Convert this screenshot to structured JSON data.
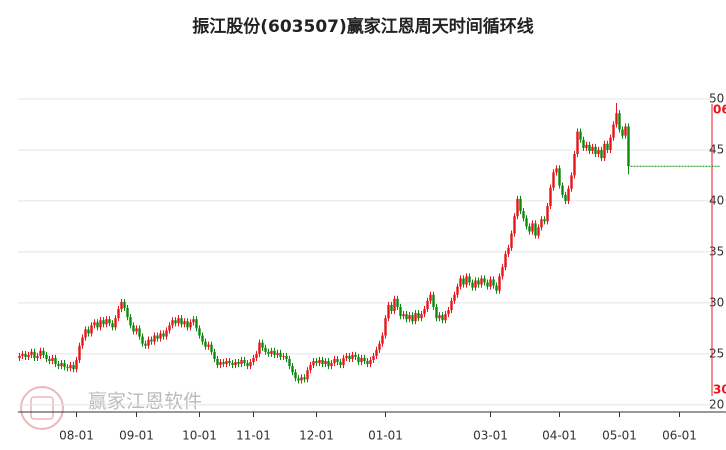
{
  "chart_data": {
    "type": "candlestick",
    "title": "振江股份(603507)赢家江恩周天时间循环线",
    "watermark": "赢家江恩软件",
    "annotations": [
      "06",
      "30"
    ],
    "up_color": "#e8141a",
    "down_color": "#0a8a0a",
    "cycle_color": "#e8141a",
    "ylim": [
      19.3,
      52.3
    ],
    "yticks": [
      20,
      25,
      30,
      35,
      40,
      45,
      50
    ],
    "grid": true,
    "categories": [
      null,
      null,
      null,
      null,
      null,
      null,
      null,
      null,
      null,
      null,
      null,
      null,
      null,
      null,
      null,
      null,
      null,
      null,
      null,
      "08-01",
      null,
      null,
      null,
      null,
      null,
      null,
      null,
      null,
      null,
      null,
      null,
      null,
      null,
      null,
      null,
      null,
      null,
      null,
      null,
      "09-01",
      null,
      null,
      null,
      null,
      null,
      null,
      null,
      null,
      null,
      null,
      null,
      null,
      null,
      null,
      null,
      null,
      null,
      null,
      null,
      null,
      "10-01",
      null,
      null,
      null,
      null,
      null,
      null,
      null,
      null,
      null,
      null,
      null,
      null,
      null,
      null,
      null,
      null,
      null,
      "11-01",
      null,
      null,
      null,
      null,
      null,
      null,
      null,
      null,
      null,
      null,
      null,
      null,
      null,
      null,
      null,
      null,
      null,
      null,
      null,
      null,
      "12-01",
      null,
      null,
      null,
      null,
      null,
      null,
      null,
      null,
      null,
      null,
      null,
      null,
      null,
      null,
      null,
      null,
      null,
      null,
      null,
      null,
      null,
      null,
      "01-01",
      null,
      null,
      null,
      null,
      null,
      null,
      null,
      null,
      null,
      null,
      null,
      null,
      null,
      null,
      null,
      null,
      null,
      null,
      null,
      null,
      null,
      null,
      null,
      null,
      null,
      null,
      null,
      null,
      null,
      null,
      null,
      null,
      null,
      null,
      "03-01",
      null,
      null,
      null,
      null,
      null,
      null,
      null,
      null,
      null,
      null,
      null,
      null,
      null,
      null,
      null,
      null,
      null,
      null,
      null,
      null,
      null,
      null,
      "04-01",
      null,
      null,
      null,
      null,
      null,
      null,
      null,
      null,
      null,
      null,
      null,
      null,
      null,
      null,
      null,
      null,
      null,
      null,
      null,
      "05-01",
      null,
      null,
      null,
      null,
      null,
      null,
      null,
      null,
      null,
      null,
      null,
      null,
      null,
      null,
      null,
      null,
      null,
      null,
      null,
      "06-01"
    ],
    "open": [
      24.6,
      24.8,
      25.0,
      24.7,
      24.9,
      25.2,
      24.6,
      24.8,
      25.3,
      24.9,
      24.5,
      24.3,
      24.6,
      24.0,
      23.8,
      24.1,
      23.7,
      23.6,
      23.9,
      23.5,
      24.4,
      25.8,
      26.6,
      27.4,
      27.0,
      27.8,
      28.1,
      27.6,
      28.3,
      27.9,
      28.4,
      28.0,
      27.6,
      28.5,
      29.4,
      30.1,
      29.5,
      28.6,
      27.8,
      27.2,
      27.5,
      26.7,
      26.0,
      25.8,
      26.4,
      26.2,
      26.8,
      26.5,
      27.0,
      26.7,
      27.3,
      27.8,
      28.3,
      28.0,
      28.5,
      27.9,
      28.2,
      27.6,
      28.1,
      28.4,
      27.5,
      26.8,
      26.2,
      25.7,
      25.9,
      25.2,
      24.5,
      23.9,
      24.2,
      24.0,
      24.3,
      24.1,
      23.9,
      24.2,
      24.0,
      24.4,
      24.1,
      23.8,
      24.2,
      24.6,
      25.0,
      26.1,
      25.6,
      25.2,
      25.0,
      25.3,
      24.9,
      25.1,
      24.7,
      24.8,
      24.5,
      23.8,
      23.2,
      22.6,
      22.4,
      22.7,
      22.5,
      23.4,
      23.9,
      24.3,
      24.1,
      24.4,
      24.0,
      24.3,
      23.8,
      24.1,
      24.5,
      24.2,
      23.9,
      24.6,
      24.8,
      24.5,
      24.9,
      24.7,
      24.2,
      24.6,
      24.3,
      24.0,
      24.4,
      24.8,
      25.4,
      26.0,
      26.8,
      28.5,
      29.8,
      29.2,
      30.4,
      29.6,
      28.7,
      28.9,
      28.4,
      28.8,
      28.2,
      29.0,
      28.5,
      28.9,
      29.4,
      30.2,
      30.8,
      29.6,
      28.5,
      28.8,
      28.3,
      28.9,
      29.3,
      30.2,
      30.8,
      31.6,
      32.4,
      31.8,
      32.6,
      32.0,
      31.5,
      32.2,
      31.8,
      32.4,
      32.0,
      31.6,
      32.3,
      31.7,
      31.2,
      32.6,
      33.5,
      34.8,
      35.4,
      36.8,
      38.5,
      40.2,
      39.0,
      38.3,
      37.5,
      37.0,
      37.8,
      36.6,
      37.4,
      38.2,
      38.0,
      39.5,
      41.3,
      42.8,
      43.2,
      41.5,
      40.6,
      40.0,
      41.2,
      42.5,
      44.6,
      46.8,
      46.0,
      45.2,
      45.5,
      44.9,
      45.3,
      44.6,
      45.0,
      44.2,
      45.6,
      45.0,
      46.2,
      47.5,
      48.6,
      47.0,
      46.4,
      47.3,
      null,
      null,
      null,
      null,
      null,
      null,
      null,
      null,
      null,
      null,
      null,
      null,
      null,
      null,
      null,
      null,
      null
    ],
    "high": [
      25.1,
      25.3,
      25.3,
      25.2,
      25.5,
      25.5,
      25.1,
      25.6,
      25.6,
      25.2,
      24.8,
      24.9,
      24.9,
      24.3,
      24.4,
      24.4,
      24.0,
      24.2,
      24.2,
      24.7,
      26.1,
      26.9,
      27.7,
      27.7,
      28.1,
      28.4,
      28.4,
      28.6,
      28.6,
      28.7,
      28.7,
      28.3,
      28.8,
      29.7,
      30.4,
      30.4,
      29.8,
      28.9,
      28.1,
      27.8,
      27.8,
      27.0,
      26.3,
      26.7,
      26.7,
      27.1,
      27.1,
      27.3,
      27.3,
      27.6,
      28.1,
      28.6,
      28.6,
      28.8,
      28.8,
      28.5,
      28.5,
      28.4,
      28.7,
      28.7,
      27.8,
      27.1,
      26.5,
      26.2,
      26.2,
      25.5,
      24.8,
      24.5,
      24.5,
      24.6,
      24.6,
      24.4,
      24.5,
      24.5,
      24.7,
      24.7,
      24.4,
      24.5,
      24.9,
      25.3,
      26.4,
      26.4,
      25.9,
      25.5,
      25.6,
      25.6,
      25.4,
      25.4,
      25.1,
      25.1,
      24.8,
      24.1,
      23.5,
      22.9,
      23.0,
      23.0,
      23.7,
      24.2,
      24.6,
      24.6,
      24.7,
      24.7,
      24.6,
      24.6,
      24.4,
      24.8,
      24.8,
      24.5,
      24.9,
      25.1,
      25.1,
      25.2,
      25.2,
      25.0,
      24.9,
      24.9,
      24.6,
      24.7,
      25.1,
      25.7,
      26.3,
      27.1,
      28.8,
      30.1,
      30.1,
      30.7,
      30.7,
      29.9,
      29.2,
      29.2,
      29.1,
      29.1,
      29.3,
      29.3,
      29.2,
      29.7,
      30.5,
      31.1,
      31.1,
      29.9,
      29.1,
      29.1,
      29.2,
      29.6,
      30.5,
      31.1,
      31.9,
      32.7,
      32.7,
      32.9,
      32.9,
      32.3,
      32.5,
      32.5,
      32.7,
      32.7,
      32.3,
      32.6,
      32.6,
      32.0,
      32.9,
      33.8,
      35.1,
      35.7,
      37.1,
      38.8,
      40.5,
      40.5,
      39.3,
      38.6,
      37.8,
      38.1,
      38.1,
      37.7,
      38.5,
      38.5,
      39.8,
      41.6,
      43.1,
      43.5,
      43.5,
      41.8,
      40.9,
      41.5,
      42.8,
      44.9,
      47.1,
      47.1,
      46.3,
      45.8,
      45.8,
      45.6,
      45.6,
      45.3,
      45.3,
      45.9,
      45.9,
      46.5,
      47.8,
      49.6,
      48.9,
      47.3,
      47.6,
      47.6,
      null,
      null,
      null,
      null,
      null,
      null,
      null,
      null,
      null,
      null,
      null,
      null,
      null,
      null,
      null,
      null,
      null
    ],
    "low": [
      24.3,
      24.5,
      24.4,
      24.4,
      24.6,
      24.3,
      24.3,
      24.5,
      24.6,
      24.2,
      24.0,
      24.0,
      23.7,
      23.5,
      23.5,
      23.4,
      23.3,
      23.3,
      23.2,
      23.2,
      24.1,
      25.5,
      26.3,
      26.7,
      26.7,
      27.5,
      27.3,
      27.3,
      27.6,
      27.6,
      27.7,
      27.3,
      27.3,
      28.2,
      29.1,
      29.2,
      28.3,
      27.5,
      26.9,
      26.9,
      26.4,
      25.7,
      25.5,
      25.5,
      25.9,
      25.9,
      26.2,
      26.2,
      26.4,
      26.4,
      27.0,
      27.5,
      27.7,
      27.7,
      27.6,
      27.6,
      27.3,
      27.3,
      27.8,
      27.2,
      26.5,
      25.9,
      25.4,
      25.4,
      24.9,
      24.2,
      23.6,
      23.6,
      23.7,
      23.7,
      23.8,
      23.6,
      23.6,
      23.7,
      23.7,
      23.8,
      23.5,
      23.5,
      23.9,
      24.3,
      24.7,
      25.3,
      24.9,
      24.7,
      24.7,
      24.6,
      24.6,
      24.4,
      24.4,
      24.2,
      23.5,
      22.9,
      22.3,
      22.1,
      22.1,
      22.2,
      22.2,
      23.1,
      23.6,
      23.8,
      23.8,
      23.7,
      23.7,
      23.5,
      23.5,
      23.8,
      23.9,
      23.6,
      23.6,
      24.3,
      24.2,
      24.2,
      24.4,
      23.9,
      23.9,
      24.0,
      23.7,
      23.7,
      24.1,
      24.5,
      25.1,
      25.7,
      26.5,
      28.2,
      28.9,
      28.9,
      29.3,
      28.4,
      28.4,
      28.1,
      28.1,
      27.9,
      27.9,
      28.2,
      28.2,
      28.6,
      29.1,
      29.9,
      29.3,
      28.2,
      28.2,
      28.0,
      28.0,
      28.6,
      29.0,
      29.9,
      30.5,
      31.3,
      31.5,
      31.5,
      31.7,
      31.2,
      31.2,
      31.5,
      31.5,
      31.7,
      31.3,
      31.3,
      31.4,
      30.9,
      30.9,
      32.3,
      33.2,
      34.5,
      35.1,
      36.5,
      38.2,
      38.7,
      38.0,
      37.2,
      36.7,
      36.7,
      36.3,
      36.3,
      37.1,
      37.7,
      37.7,
      39.2,
      41.0,
      42.5,
      41.2,
      40.3,
      39.7,
      39.7,
      40.9,
      42.2,
      44.3,
      45.7,
      44.9,
      44.9,
      44.6,
      44.6,
      44.3,
      44.3,
      43.9,
      43.9,
      44.7,
      44.7,
      45.9,
      47.2,
      46.7,
      46.1,
      46.1,
      42.6,
      null,
      null,
      null,
      null,
      null,
      null,
      null,
      null,
      null,
      null,
      null,
      null,
      null,
      null,
      null,
      null,
      null
    ],
    "close": [
      24.8,
      25.0,
      24.7,
      24.9,
      25.2,
      24.6,
      24.8,
      25.3,
      24.9,
      24.5,
      24.3,
      24.6,
      24.0,
      23.8,
      24.1,
      23.7,
      23.6,
      23.9,
      23.5,
      24.4,
      25.8,
      26.6,
      27.4,
      27.0,
      27.8,
      28.1,
      27.6,
      28.3,
      27.9,
      28.4,
      28.0,
      27.6,
      28.5,
      29.4,
      30.1,
      29.5,
      28.6,
      27.8,
      27.2,
      27.5,
      26.7,
      26.0,
      25.8,
      26.4,
      26.2,
      26.8,
      26.5,
      27.0,
      26.7,
      27.3,
      27.8,
      28.3,
      28.0,
      28.5,
      27.9,
      28.2,
      27.6,
      28.1,
      28.4,
      27.5,
      26.8,
      26.2,
      25.7,
      25.9,
      25.2,
      24.5,
      23.9,
      24.2,
      24.0,
      24.3,
      24.1,
      23.9,
      24.2,
      24.0,
      24.4,
      24.1,
      23.8,
      24.2,
      24.6,
      25.0,
      26.1,
      25.6,
      25.2,
      25.0,
      25.3,
      24.9,
      25.1,
      24.7,
      24.8,
      24.5,
      23.8,
      23.2,
      22.6,
      22.4,
      22.7,
      22.5,
      23.4,
      23.9,
      24.3,
      24.1,
      24.4,
      24.0,
      24.3,
      23.8,
      24.1,
      24.5,
      24.2,
      23.9,
      24.6,
      24.8,
      24.5,
      24.9,
      24.7,
      24.2,
      24.6,
      24.3,
      24.0,
      24.4,
      24.8,
      25.4,
      26.0,
      26.8,
      28.5,
      29.8,
      29.2,
      30.4,
      29.6,
      28.7,
      28.9,
      28.4,
      28.8,
      28.2,
      29.0,
      28.5,
      28.9,
      29.4,
      30.2,
      30.8,
      29.6,
      28.5,
      28.8,
      28.3,
      28.9,
      29.3,
      30.2,
      30.8,
      31.6,
      32.4,
      31.8,
      32.6,
      32.0,
      31.5,
      32.2,
      31.8,
      32.4,
      32.0,
      31.6,
      32.3,
      31.7,
      31.2,
      32.6,
      33.5,
      34.8,
      35.4,
      36.8,
      38.5,
      40.2,
      39.0,
      38.3,
      37.5,
      37.0,
      37.8,
      36.6,
      37.4,
      38.2,
      38.0,
      39.5,
      41.3,
      42.8,
      43.2,
      41.5,
      40.6,
      40.0,
      41.2,
      42.5,
      44.6,
      46.8,
      46.0,
      45.2,
      45.5,
      44.9,
      45.3,
      44.6,
      45.0,
      44.2,
      45.6,
      45.0,
      46.2,
      47.5,
      48.6,
      47.0,
      46.4,
      47.3,
      43.4,
      null,
      null,
      null,
      null,
      null,
      null,
      null,
      null,
      null,
      null,
      null,
      null,
      null,
      null,
      null,
      null,
      null
    ]
  }
}
